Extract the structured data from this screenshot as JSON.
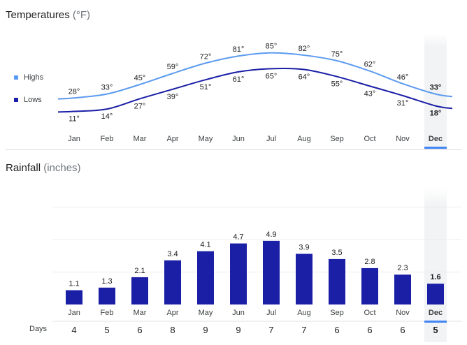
{
  "temperature": {
    "title": "Temperatures",
    "unit": "(°F)",
    "legend": {
      "highs": "Highs",
      "lows": "Lows"
    },
    "colors": {
      "highs": "#5b9af0",
      "lows": "#1a1fa6"
    }
  },
  "rainfall": {
    "title": "Rainfall",
    "unit": "(inches)",
    "days_label": "Days"
  },
  "selected_month": "Dec",
  "chart_data": [
    {
      "type": "line",
      "title": "Temperatures (°F)",
      "categories": [
        "Jan",
        "Feb",
        "Mar",
        "Apr",
        "May",
        "Jun",
        "Jul",
        "Aug",
        "Sep",
        "Oct",
        "Nov",
        "Dec"
      ],
      "series": [
        {
          "name": "Highs",
          "values": [
            28,
            33,
            45,
            59,
            72,
            81,
            85,
            82,
            75,
            62,
            46,
            33
          ],
          "color": "#5b9af0"
        },
        {
          "name": "Lows",
          "values": [
            11,
            14,
            27,
            39,
            51,
            61,
            65,
            64,
            55,
            43,
            31,
            18
          ],
          "color": "#1a1fa6"
        }
      ],
      "legend": "left",
      "value_suffix": "°"
    },
    {
      "type": "bar",
      "title": "Rainfall (inches)",
      "categories": [
        "Jan",
        "Feb",
        "Mar",
        "Apr",
        "May",
        "Jun",
        "Jul",
        "Aug",
        "Sep",
        "Oct",
        "Nov",
        "Dec"
      ],
      "values": [
        1.1,
        1.3,
        2.1,
        3.4,
        4.1,
        4.7,
        4.9,
        3.9,
        3.5,
        2.8,
        2.3,
        1.6
      ],
      "days": [
        4,
        5,
        6,
        8,
        9,
        9,
        7,
        7,
        6,
        6,
        6,
        5
      ],
      "ylim": [
        0,
        10
      ],
      "color": "#1a1fa6"
    }
  ]
}
